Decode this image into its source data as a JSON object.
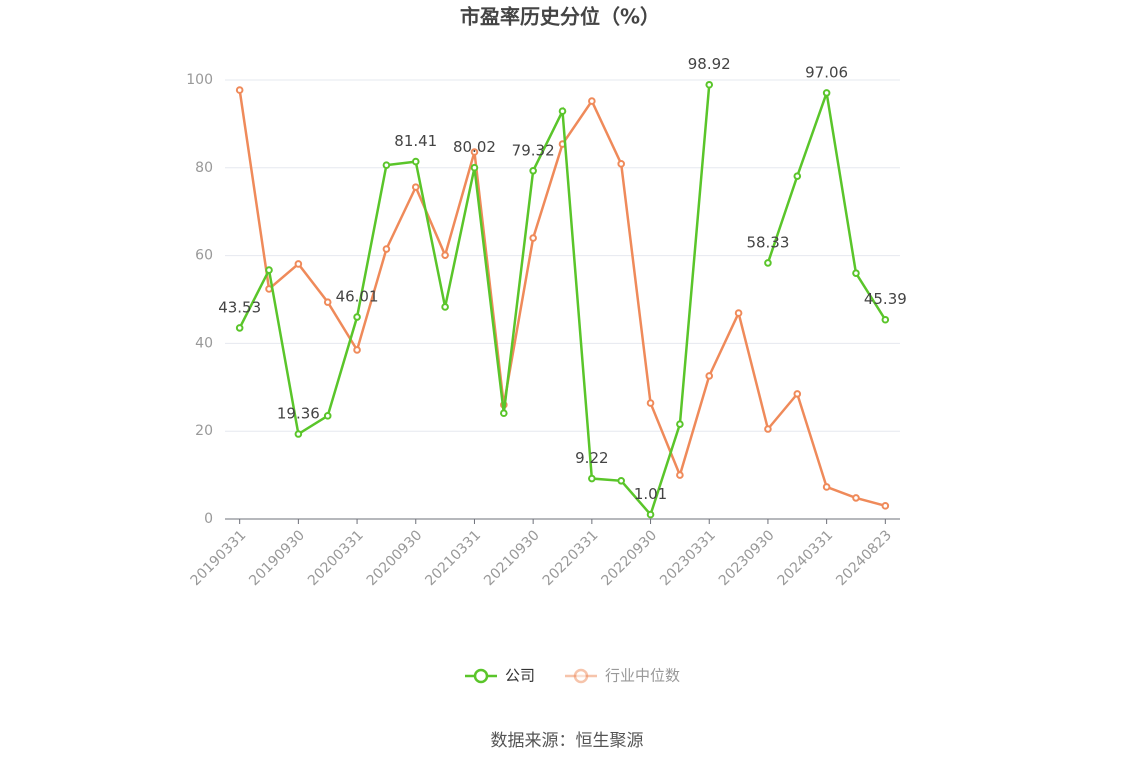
{
  "chart_data": {
    "type": "line",
    "title": "市盈率历史分位（%）",
    "categories": [
      "20190331",
      null,
      "20190930",
      null,
      "20200331",
      null,
      "20200930",
      null,
      "20210331",
      null,
      "20210930",
      null,
      "20220331",
      null,
      "20220930",
      null,
      "20230331",
      null,
      "20230930",
      null,
      "20240331",
      null,
      "20240823"
    ],
    "series": [
      {
        "name": "公司",
        "color": "#5ac52a",
        "values": [
          43.53,
          56.7,
          19.36,
          23.5,
          46.01,
          80.6,
          81.41,
          48.3,
          80.02,
          24.1,
          79.32,
          92.9,
          9.22,
          8.7,
          1.01,
          21.6,
          98.92,
          null,
          58.33,
          78.1,
          97.06,
          56.0,
          45.39
        ],
        "value_labels": [
          "43.53",
          null,
          "19.36",
          null,
          "46.01",
          null,
          "81.41",
          null,
          "80.02",
          null,
          "79.32",
          null,
          "9.22",
          null,
          "1.01",
          null,
          "98.92",
          null,
          "58.33",
          null,
          "97.06",
          null,
          "45.39"
        ]
      },
      {
        "name": "行业中位数",
        "color": "#ef8a5a",
        "values": [
          97.7,
          52.4,
          58.1,
          49.4,
          38.5,
          61.5,
          75.6,
          60.1,
          83.6,
          26.0,
          64.0,
          85.4,
          95.2,
          80.9,
          26.4,
          10.0,
          32.6,
          46.9,
          20.5,
          28.5,
          7.3,
          4.8,
          3.0
        ]
      }
    ],
    "ylim": [
      0,
      100
    ],
    "yticks": [
      0,
      20,
      40,
      60,
      80,
      100
    ],
    "grid": true,
    "source": "数据来源：恒生聚源"
  }
}
